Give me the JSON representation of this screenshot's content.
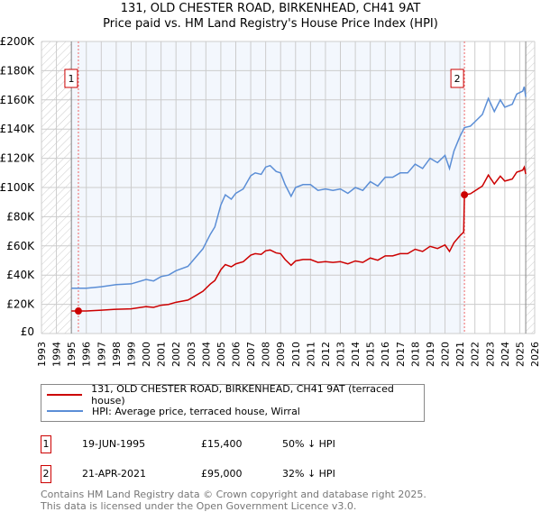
{
  "chart_data": {
    "type": "line",
    "title": "131, OLD CHESTER ROAD, BIRKENHEAD, CH41 9AT",
    "subtitle": "Price paid vs. HM Land Registry's House Price Index (HPI)",
    "xlim": [
      1993,
      2026
    ],
    "ylim": [
      0,
      200000
    ],
    "x_ticks": [
      "1993",
      "1994",
      "1995",
      "1996",
      "1997",
      "1998",
      "1999",
      "2000",
      "2001",
      "2002",
      "2003",
      "2004",
      "2005",
      "2006",
      "2007",
      "2008",
      "2009",
      "2010",
      "2011",
      "2012",
      "2013",
      "2014",
      "2015",
      "2016",
      "2017",
      "2018",
      "2019",
      "2020",
      "2021",
      "2022",
      "2023",
      "2024",
      "2025",
      "2026"
    ],
    "y_ticks": [
      {
        "v": 0,
        "l": "£0"
      },
      {
        "v": 20000,
        "l": "£20K"
      },
      {
        "v": 40000,
        "l": "£40K"
      },
      {
        "v": 60000,
        "l": "£60K"
      },
      {
        "v": 80000,
        "l": "£80K"
      },
      {
        "v": 100000,
        "l": "£100K"
      },
      {
        "v": 120000,
        "l": "£120K"
      },
      {
        "v": 140000,
        "l": "£140K"
      },
      {
        "v": 160000,
        "l": "£160K"
      },
      {
        "v": 180000,
        "l": "£180K"
      },
      {
        "v": 200000,
        "l": "£200K"
      }
    ],
    "grid": true,
    "series": [
      {
        "name": "131, OLD CHESTER ROAD, BIRKENHEAD, CH41 9AT (terraced house)",
        "color": "#cc0000",
        "x": [
          1995,
          1995.47,
          1996,
          1997,
          1998,
          1999,
          2000,
          2000.5,
          2001,
          2001.5,
          2002,
          2002.8,
          2003.3,
          2003.8,
          2004.3,
          2004.6,
          2005,
          2005.3,
          2005.7,
          2006,
          2006.5,
          2007,
          2007.3,
          2007.7,
          2008,
          2008.3,
          2008.7,
          2009,
          2009.3,
          2009.7,
          2010,
          2010.5,
          2011,
          2011.5,
          2012,
          2012.5,
          2013,
          2013.5,
          2014,
          2014.5,
          2015,
          2015.5,
          2016,
          2016.5,
          2017,
          2017.5,
          2018,
          2018.5,
          2019,
          2019.5,
          2020,
          2020.3,
          2020.6,
          2021,
          2021.25,
          2021.3,
          2021.7,
          2022,
          2022.5,
          2022.9,
          2023.3,
          2023.7,
          2024,
          2024.5,
          2024.8,
          2025.2,
          2025.3,
          2025.4
        ],
        "y": [
          15400,
          15400,
          15400,
          16000,
          16600,
          16900,
          18400,
          17900,
          19400,
          19900,
          21400,
          22900,
          25900,
          28900,
          33900,
          36300,
          43700,
          47200,
          45700,
          47700,
          49200,
          53700,
          54700,
          54200,
          56700,
          57200,
          55200,
          54700,
          50700,
          46700,
          49700,
          50700,
          50700,
          48700,
          49200,
          48700,
          49200,
          47700,
          49700,
          48700,
          51700,
          50200,
          53200,
          53200,
          54700,
          54700,
          57700,
          56200,
          59700,
          58200,
          60700,
          56200,
          62200,
          67000,
          69500,
          95000,
          95700,
          97700,
          101000,
          108500,
          102400,
          107800,
          104400,
          105800,
          110500,
          111900,
          113900,
          109200
        ]
      },
      {
        "name": "HPI: Average price, terraced house, Wirral",
        "color": "#5b8ed6",
        "x": [
          1995,
          1996,
          1997,
          1998,
          1999,
          2000,
          2000.5,
          2001,
          2001.5,
          2002,
          2002.8,
          2003.3,
          2003.8,
          2004.3,
          2004.6,
          2005,
          2005.3,
          2005.7,
          2006,
          2006.5,
          2007,
          2007.3,
          2007.7,
          2008,
          2008.3,
          2008.7,
          2009,
          2009.3,
          2009.7,
          2010,
          2010.5,
          2011,
          2011.5,
          2012,
          2012.5,
          2013,
          2013.5,
          2014,
          2014.5,
          2015,
          2015.5,
          2016,
          2016.5,
          2017,
          2017.5,
          2018,
          2018.5,
          2019,
          2019.5,
          2020,
          2020.3,
          2020.6,
          2021,
          2021.3,
          2021.7,
          2022,
          2022.5,
          2022.9,
          2023.3,
          2023.7,
          2024,
          2024.5,
          2024.8,
          2025.2,
          2025.3,
          2025.4
        ],
        "y": [
          31000,
          31000,
          32000,
          33500,
          34000,
          37000,
          36000,
          39000,
          40000,
          43000,
          46000,
          52000,
          58000,
          68000,
          73000,
          88000,
          95000,
          92000,
          96000,
          99000,
          108000,
          110000,
          109000,
          114000,
          115000,
          111000,
          110000,
          102000,
          94000,
          100000,
          102000,
          102000,
          98000,
          99000,
          98000,
          99000,
          96000,
          100000,
          98000,
          104000,
          101000,
          107000,
          107000,
          110000,
          110000,
          116000,
          113000,
          120000,
          117000,
          122000,
          113000,
          125000,
          135000,
          141000,
          142000,
          145000,
          150000,
          161000,
          152000,
          160000,
          155000,
          157000,
          164000,
          166000,
          169000,
          162000
        ]
      }
    ],
    "sales": [
      {
        "label": "1",
        "x": 1995.47,
        "y": 15400,
        "date": "19-JUN-1995",
        "price": "£15,400",
        "hpi": "50% ↓ HPI"
      },
      {
        "label": "2",
        "x": 2021.3,
        "y": 95000,
        "date": "21-APR-2021",
        "price": "£95,000",
        "hpi": "32% ↓ HPI"
      }
    ],
    "shaded_range": [
      1995,
      2021.3
    ],
    "hatched_ranges": [
      [
        1993,
        1995
      ],
      [
        2025.4,
        2026
      ]
    ]
  },
  "footer": {
    "line1": "Contains HM Land Registry data © Crown copyright and database right 2025.",
    "line2": "This data is licensed under the Open Government Licence v3.0."
  }
}
